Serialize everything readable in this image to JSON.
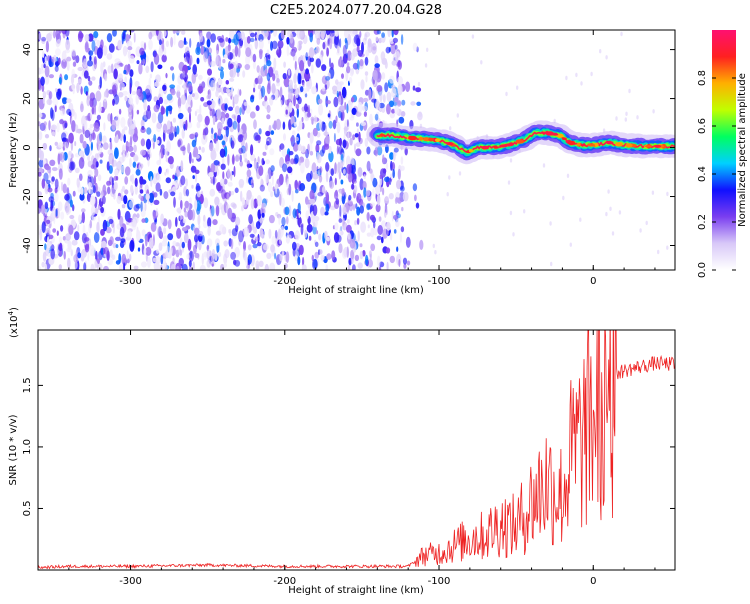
{
  "title": "C2E5.2024.077.20.04.G28",
  "chart_data": [
    {
      "type": "heatmap",
      "xlabel": "Height of straight line (km)",
      "ylabel": "Frequency (Hz)",
      "xlim": [
        -360,
        53
      ],
      "ylim": [
        -50,
        48
      ],
      "xticks": [
        -300,
        -200,
        -100,
        0
      ],
      "xtick_labels": [
        "-300",
        "-200",
        "-100",
        "0"
      ],
      "yticks": [
        -40,
        -20,
        0,
        20,
        40
      ],
      "ytick_labels": [
        "-40",
        "-20",
        "0",
        "20",
        "40"
      ],
      "colorbar": {
        "label": "Normalized spectral amplitude",
        "range": [
          0,
          1
        ],
        "ticks": [
          0.0,
          0.2,
          0.4,
          0.6,
          0.8
        ],
        "tick_labels": [
          "0.0",
          "0.2",
          "0.4",
          "0.6",
          "0.8"
        ],
        "colors": [
          "#ffffff",
          "#d8c8f8",
          "#7a3ef0",
          "#1010ff",
          "#00d0ff",
          "#00ff60",
          "#c0ff00",
          "#ffb000",
          "#ff2020",
          "#ff1070"
        ]
      },
      "noise_region": {
        "x_range": [
          -360,
          -123
        ],
        "level": 0.15
      },
      "tone_track": {
        "x": [
          -140,
          -130,
          -120,
          -110,
          -100,
          -90,
          -82,
          -75,
          -65,
          -55,
          -45,
          -38,
          -30,
          -22,
          -15,
          -8,
          0,
          10,
          20,
          35,
          53
        ],
        "y": [
          5,
          5,
          4,
          3.5,
          3,
          1,
          -2,
          0,
          0,
          1,
          3,
          6,
          6,
          5,
          2,
          1,
          1,
          2,
          1,
          0.5,
          0.5
        ],
        "peak_amplitude": 0.95
      }
    },
    {
      "type": "line",
      "xlabel": "Height of straight line (km)",
      "ylabel": "SNR (10 * v/v)",
      "yscale_label": "(x10",
      "yscale_exponent": "4",
      "xlim": [
        -360,
        53
      ],
      "ylim": [
        0,
        1.95
      ],
      "xticks": [
        -300,
        -200,
        -100,
        0
      ],
      "xtick_labels": [
        "-300",
        "-200",
        "-100",
        "0"
      ],
      "yticks": [
        0.5,
        1.0,
        1.5
      ],
      "ytick_labels": [
        "0.5",
        "1.0",
        "1.5"
      ],
      "color": "#ee2222",
      "series": [
        {
          "x": [
            -360,
            -340,
            -300,
            -250,
            -200,
            -150,
            -120,
            -110,
            -100,
            -90,
            -80,
            -70,
            -60,
            -50,
            -40,
            -30,
            -20,
            -15,
            -10,
            -5,
            0,
            5,
            10,
            15,
            20,
            30,
            40,
            53
          ],
          "y": [
            0.02,
            0.03,
            0.03,
            0.04,
            0.03,
            0.03,
            0.03,
            0.12,
            0.14,
            0.2,
            0.26,
            0.28,
            0.38,
            0.35,
            0.55,
            0.72,
            0.6,
            0.9,
            1.0,
            1.1,
            1.25,
            1.35,
            1.45,
            1.6,
            1.62,
            1.65,
            1.68,
            1.67
          ]
        }
      ]
    }
  ]
}
